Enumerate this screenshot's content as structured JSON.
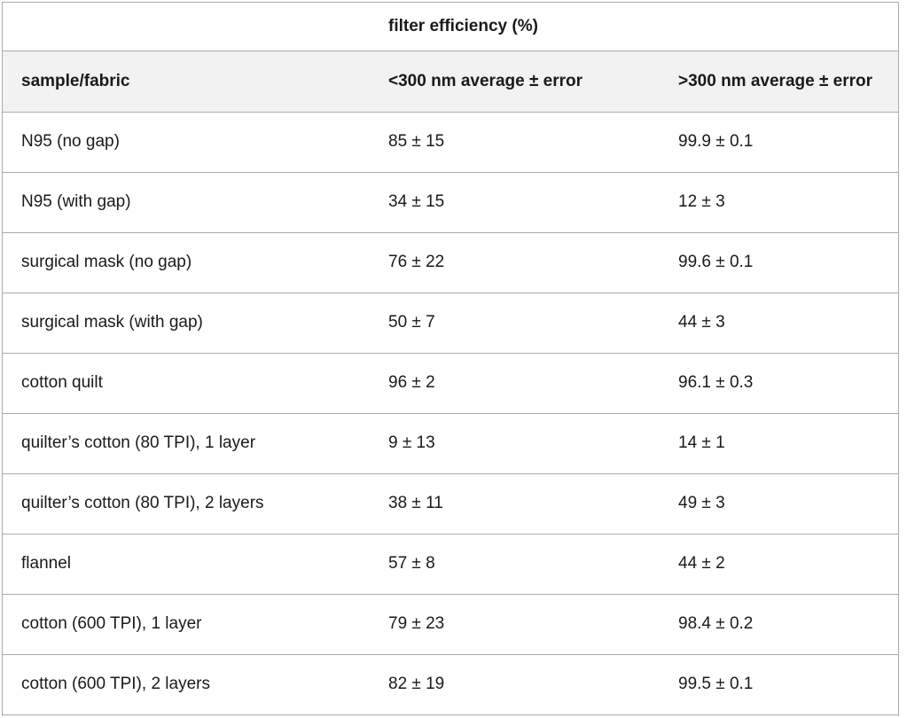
{
  "table": {
    "group_header": "filter efficiency (%)",
    "columns": {
      "fabric": "sample/fabric",
      "below300": "<300 nm average ± error",
      "above300": ">300 nm average ± error"
    },
    "rows": [
      {
        "fabric": "N95 (no gap)",
        "below300": "85 ± 15",
        "above300": "99.9 ± 0.1"
      },
      {
        "fabric": "N95 (with gap)",
        "below300": "34 ± 15",
        "above300": "12 ± 3"
      },
      {
        "fabric": "surgical mask (no gap)",
        "below300": "76 ± 22",
        "above300": "99.6 ± 0.1"
      },
      {
        "fabric": "surgical mask (with gap)",
        "below300": "50 ± 7",
        "above300": "44 ± 3"
      },
      {
        "fabric": "cotton quilt",
        "below300": "96 ± 2",
        "above300": "96.1 ± 0.3"
      },
      {
        "fabric": "quilter’s cotton (80 TPI), 1 layer",
        "below300": "9 ± 13",
        "above300": "14 ± 1"
      },
      {
        "fabric": "quilter’s cotton (80 TPI), 2 layers",
        "below300": "38 ± 11",
        "above300": "49 ± 3"
      },
      {
        "fabric": "flannel",
        "below300": "57 ± 8",
        "above300": "44 ± 2"
      },
      {
        "fabric": "cotton (600 TPI), 1 layer",
        "below300": "79 ± 23",
        "above300": "98.4 ± 0.2"
      },
      {
        "fabric": "cotton (600 TPI), 2 layers",
        "below300": "82 ± 19",
        "above300": "99.5 ± 0.1"
      }
    ]
  },
  "colors": {
    "border": "#ababab",
    "text": "#1a1a1a",
    "header_bg": "#f2f2f2",
    "row_bg": "#ffffff",
    "group_bg": "#ffffff",
    "page_bg": "#ffffff"
  }
}
